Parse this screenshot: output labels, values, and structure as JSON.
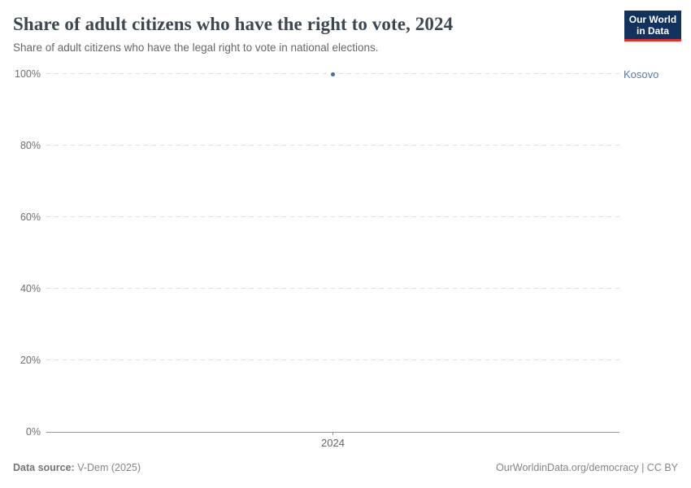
{
  "header": {
    "title": "Share of adult citizens who have the right to vote, 2024",
    "subtitle": "Share of adult citizens who have the legal right to vote in national elections.",
    "logo": {
      "line1": "Our World",
      "line2": "in Data",
      "bg_color": "#12315c",
      "accent_color": "#d8352a"
    }
  },
  "chart_data": {
    "type": "scatter",
    "title": "Share of adult citizens who have the right to vote, 2024",
    "x": [
      2024
    ],
    "xlim": [
      2023.5,
      2024.5
    ],
    "series": [
      {
        "name": "Kosovo",
        "values": [
          100
        ],
        "color": "#4c6a9c",
        "label_color": "#5b7aa6"
      }
    ],
    "xlabel": "",
    "ylabel": "",
    "ylim": [
      0,
      100
    ],
    "yticks": [
      0,
      20,
      40,
      60,
      80,
      100
    ],
    "ytick_suffix": "%",
    "xticks": [
      2024
    ],
    "grid": "horizontal-dashed",
    "legend_position": "right-of-point"
  },
  "footer": {
    "source_label": "Data source:",
    "source_value": "V-Dem (2025)",
    "credit": "OurWorldinData.org/democracy | CC BY"
  }
}
